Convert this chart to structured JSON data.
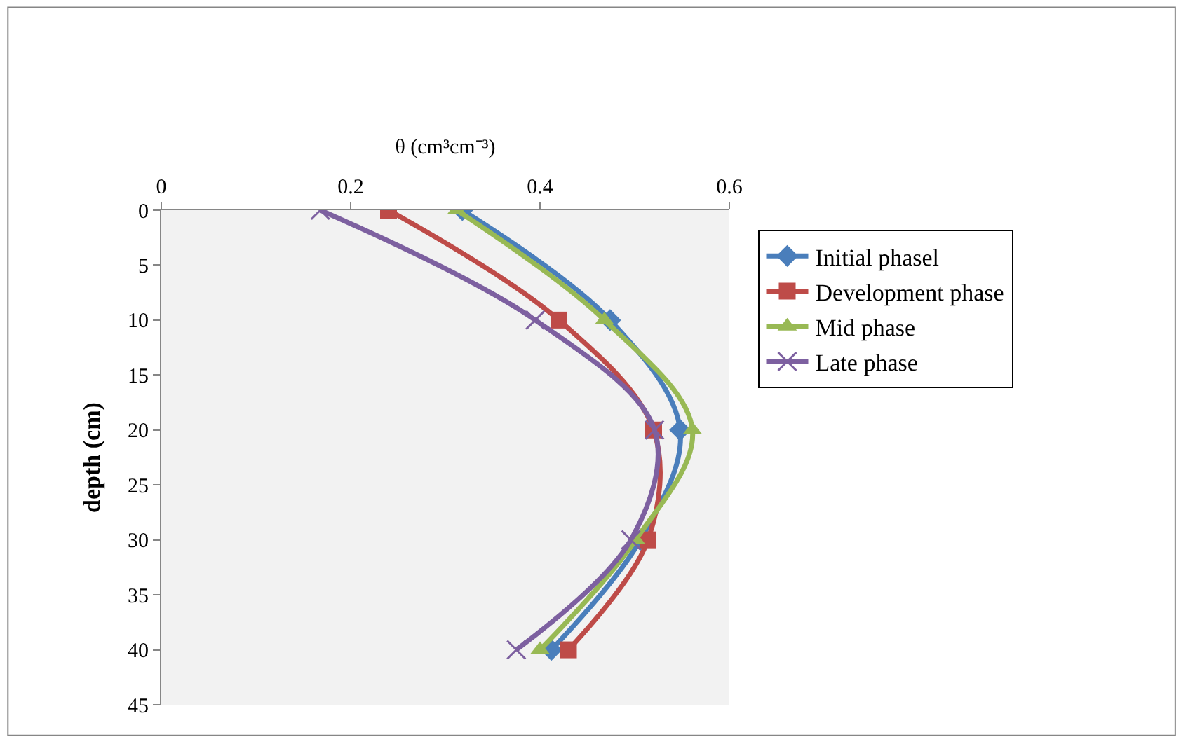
{
  "chart_data": {
    "type": "line",
    "xlabel": "θ (cm³cm⁻³)",
    "ylabel": "depth (cm)",
    "xlim": [
      0,
      0.6
    ],
    "xticks": [
      0,
      0.2,
      0.4,
      0.6
    ],
    "ylim": [
      45,
      0
    ],
    "yticks": [
      0,
      5,
      10,
      15,
      20,
      25,
      30,
      35,
      40,
      45
    ],
    "grid": false,
    "legend": "right",
    "line_style": "solid",
    "series": [
      {
        "name": "Initial phasel",
        "color": "#4a7ebb",
        "marker": "diamond",
        "x": [
          0.318,
          0.474,
          0.548,
          0.506,
          0.412
        ],
        "values": [
          0,
          10,
          20,
          30,
          40
        ]
      },
      {
        "name": "Development phase",
        "color": "#be4b48",
        "marker": "square",
        "x": [
          0.24,
          0.42,
          0.52,
          0.514,
          0.43
        ],
        "values": [
          0,
          10,
          20,
          30,
          40
        ]
      },
      {
        "name": "Mid phase",
        "color": "#98b954",
        "marker": "triangle",
        "x": [
          0.312,
          0.468,
          0.561,
          0.501,
          0.4
        ],
        "values": [
          0,
          10,
          20,
          30,
          40
        ]
      },
      {
        "name": "Late phase",
        "color": "#7d60a0",
        "marker": "cross",
        "x": [
          0.168,
          0.395,
          0.521,
          0.496,
          0.375
        ],
        "values": [
          0,
          10,
          20,
          30,
          40
        ]
      }
    ]
  }
}
